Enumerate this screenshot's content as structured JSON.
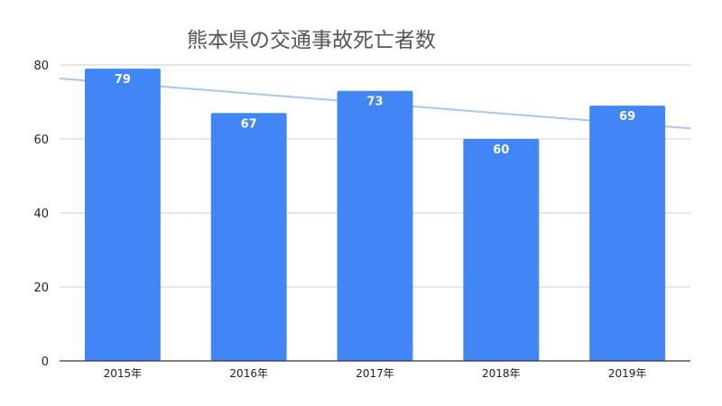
{
  "chart_data": {
    "type": "bar",
    "title": "熊本県の交通事故死亡者数",
    "xlabel": "",
    "ylabel": "",
    "categories": [
      "2015年",
      "2016年",
      "2017年",
      "2018年",
      "2019年"
    ],
    "values": [
      79,
      67,
      73,
      60,
      69
    ],
    "data_labels": [
      "79",
      "67",
      "73",
      "60",
      "69"
    ],
    "ylim": [
      0,
      80
    ],
    "yticks": [
      "0",
      "20",
      "40",
      "60",
      "80"
    ],
    "grid": true,
    "legend": "none",
    "trendline": true,
    "colors": {
      "bar": "#4285f4",
      "trendline": "#a8c7ea",
      "grid": "#cccccc",
      "axis": "#333333",
      "label_text": "#ffffff",
      "tick_text": "#222222",
      "title_text": "#555555"
    }
  }
}
